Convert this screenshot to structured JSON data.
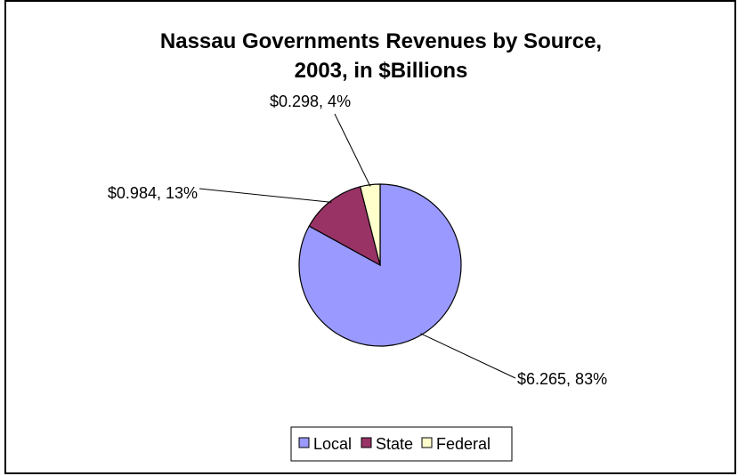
{
  "chart_data": {
    "type": "pie",
    "title_lines": [
      "Nassau Governments Revenues by Source,",
      "2003, in $Billions"
    ],
    "slices": [
      {
        "name": "Local",
        "value": 6.265,
        "label": "$6.265, 83%",
        "color": "#9999ff"
      },
      {
        "name": "State",
        "value": 0.984,
        "label": "$0.984, 13%",
        "color": "#993366"
      },
      {
        "name": "Federal",
        "value": 0.298,
        "label": "$0.298, 4%",
        "color": "#ffffcc"
      }
    ],
    "legend_position": "bottom",
    "border_color": "#000000"
  }
}
